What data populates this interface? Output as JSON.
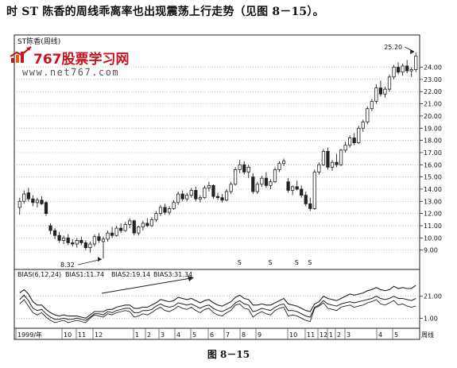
{
  "caption": "时 ST 陈香的周线乖离率也出现震荡上行走势（见图 8－15）。",
  "figure_label": "图 8－15",
  "watermark": {
    "brand": "767股票学习网",
    "url": "www.net767.com"
  },
  "colors": {
    "up": "#ffffff",
    "down": "#222222",
    "line": "#222222",
    "grid": "#888888",
    "watermark": "#c8141e"
  },
  "chart_data": [
    {
      "type": "candlestick",
      "title": "ST陈香(周线)",
      "ylim": [
        8.0,
        25.6
      ],
      "y_ticks": [
        "24.00",
        "23.00",
        "22.00",
        "21.00",
        "20.00",
        "19.00",
        "18.00",
        "17.00",
        "16.00",
        "15.00",
        "14.00",
        "13.00",
        "12.00",
        "11.00",
        "10.00",
        "9.00"
      ],
      "grid": true,
      "annotations": [
        {
          "text": "25.20",
          "value": 25.2
        },
        {
          "text": "8.32",
          "value": 8.32
        }
      ],
      "markers": [
        "S",
        "S",
        "S",
        "S"
      ],
      "candles": [
        {
          "o": 12.5,
          "h": 13.3,
          "l": 11.9,
          "c": 13.0
        },
        {
          "o": 13.0,
          "h": 13.9,
          "l": 12.8,
          "c": 13.6
        },
        {
          "o": 13.7,
          "h": 14.1,
          "l": 13.0,
          "c": 13.2
        },
        {
          "o": 13.2,
          "h": 13.5,
          "l": 12.6,
          "c": 12.9
        },
        {
          "o": 12.9,
          "h": 13.3,
          "l": 12.5,
          "c": 13.1
        },
        {
          "o": 13.1,
          "h": 13.4,
          "l": 12.7,
          "c": 12.8
        },
        {
          "o": 12.9,
          "h": 13.0,
          "l": 11.8,
          "c": 12.0
        },
        {
          "o": 11.0,
          "h": 11.2,
          "l": 10.3,
          "c": 10.6
        },
        {
          "o": 10.6,
          "h": 10.8,
          "l": 9.9,
          "c": 10.2
        },
        {
          "o": 10.2,
          "h": 10.5,
          "l": 9.6,
          "c": 9.8
        },
        {
          "o": 9.8,
          "h": 10.2,
          "l": 9.5,
          "c": 10.0
        },
        {
          "o": 10.0,
          "h": 10.3,
          "l": 9.4,
          "c": 9.6
        },
        {
          "o": 9.6,
          "h": 9.9,
          "l": 9.3,
          "c": 9.5
        },
        {
          "o": 9.5,
          "h": 10.0,
          "l": 9.2,
          "c": 9.8
        },
        {
          "o": 9.8,
          "h": 10.1,
          "l": 9.4,
          "c": 9.6
        },
        {
          "o": 9.6,
          "h": 9.8,
          "l": 9.0,
          "c": 9.2
        },
        {
          "o": 9.2,
          "h": 9.7,
          "l": 8.8,
          "c": 9.5
        },
        {
          "o": 9.5,
          "h": 10.3,
          "l": 9.3,
          "c": 10.1
        },
        {
          "o": 10.1,
          "h": 10.4,
          "l": 9.6,
          "c": 9.8
        },
        {
          "o": 9.7,
          "h": 10.1,
          "l": 8.32,
          "c": 9.9
        },
        {
          "o": 9.9,
          "h": 10.6,
          "l": 9.7,
          "c": 10.4
        },
        {
          "o": 10.4,
          "h": 10.9,
          "l": 10.0,
          "c": 10.2
        },
        {
          "o": 10.2,
          "h": 11.0,
          "l": 10.1,
          "c": 10.8
        },
        {
          "o": 10.8,
          "h": 11.2,
          "l": 10.4,
          "c": 10.6
        },
        {
          "o": 10.6,
          "h": 11.3,
          "l": 10.5,
          "c": 11.1
        },
        {
          "o": 11.1,
          "h": 11.6,
          "l": 10.8,
          "c": 11.4
        },
        {
          "o": 11.4,
          "h": 11.5,
          "l": 10.2,
          "c": 10.4
        },
        {
          "o": 10.4,
          "h": 11.0,
          "l": 10.2,
          "c": 10.9
        },
        {
          "o": 10.9,
          "h": 11.4,
          "l": 10.6,
          "c": 11.2
        },
        {
          "o": 11.2,
          "h": 11.6,
          "l": 10.9,
          "c": 11.0
        },
        {
          "o": 11.0,
          "h": 11.7,
          "l": 10.9,
          "c": 11.5
        },
        {
          "o": 11.5,
          "h": 12.2,
          "l": 11.3,
          "c": 12.0
        },
        {
          "o": 12.0,
          "h": 12.7,
          "l": 11.8,
          "c": 12.5
        },
        {
          "o": 12.5,
          "h": 12.8,
          "l": 11.9,
          "c": 12.1
        },
        {
          "o": 12.1,
          "h": 12.6,
          "l": 11.9,
          "c": 12.4
        },
        {
          "o": 12.4,
          "h": 13.1,
          "l": 12.3,
          "c": 12.9
        },
        {
          "o": 12.9,
          "h": 13.8,
          "l": 12.7,
          "c": 13.6
        },
        {
          "o": 13.6,
          "h": 13.9,
          "l": 13.0,
          "c": 13.2
        },
        {
          "o": 13.2,
          "h": 13.7,
          "l": 13.0,
          "c": 13.5
        },
        {
          "o": 13.5,
          "h": 14.1,
          "l": 13.3,
          "c": 13.9
        },
        {
          "o": 13.9,
          "h": 14.2,
          "l": 13.0,
          "c": 13.2
        },
        {
          "o": 13.2,
          "h": 13.5,
          "l": 12.9,
          "c": 13.3
        },
        {
          "o": 13.3,
          "h": 14.3,
          "l": 13.2,
          "c": 14.1
        },
        {
          "o": 14.1,
          "h": 14.6,
          "l": 13.8,
          "c": 14.3
        },
        {
          "o": 14.3,
          "h": 14.4,
          "l": 13.2,
          "c": 13.4
        },
        {
          "o": 13.4,
          "h": 13.7,
          "l": 13.1,
          "c": 13.3
        },
        {
          "o": 13.3,
          "h": 13.6,
          "l": 12.9,
          "c": 13.1
        },
        {
          "o": 13.1,
          "h": 14.0,
          "l": 13.0,
          "c": 13.8
        },
        {
          "o": 13.8,
          "h": 14.6,
          "l": 13.6,
          "c": 14.4
        },
        {
          "o": 14.4,
          "h": 15.8,
          "l": 14.3,
          "c": 15.6
        },
        {
          "o": 15.6,
          "h": 16.4,
          "l": 15.3,
          "c": 16.0
        },
        {
          "o": 16.0,
          "h": 16.3,
          "l": 15.2,
          "c": 15.4
        },
        {
          "o": 15.4,
          "h": 16.0,
          "l": 14.9,
          "c": 15.8
        },
        {
          "o": 15.0,
          "h": 15.3,
          "l": 13.6,
          "c": 13.8
        },
        {
          "o": 13.8,
          "h": 14.6,
          "l": 13.6,
          "c": 14.4
        },
        {
          "o": 14.4,
          "h": 15.1,
          "l": 14.2,
          "c": 14.9
        },
        {
          "o": 14.9,
          "h": 15.4,
          "l": 14.1,
          "c": 14.3
        },
        {
          "o": 14.3,
          "h": 14.8,
          "l": 14.0,
          "c": 14.6
        },
        {
          "o": 14.6,
          "h": 15.8,
          "l": 14.5,
          "c": 15.6
        },
        {
          "o": 15.6,
          "h": 16.3,
          "l": 15.4,
          "c": 16.1
        },
        {
          "o": 16.1,
          "h": 16.5,
          "l": 15.9,
          "c": 16.3
        },
        {
          "o": 14.6,
          "h": 14.9,
          "l": 13.7,
          "c": 13.9
        },
        {
          "o": 13.9,
          "h": 14.3,
          "l": 13.5,
          "c": 14.2
        },
        {
          "o": 14.2,
          "h": 14.7,
          "l": 13.9,
          "c": 14.0
        },
        {
          "o": 14.0,
          "h": 14.3,
          "l": 13.3,
          "c": 13.5
        },
        {
          "o": 13.5,
          "h": 13.8,
          "l": 12.6,
          "c": 12.8
        },
        {
          "o": 12.8,
          "h": 13.3,
          "l": 12.2,
          "c": 12.4
        },
        {
          "o": 12.4,
          "h": 15.6,
          "l": 12.3,
          "c": 15.4
        },
        {
          "o": 15.4,
          "h": 16.2,
          "l": 15.2,
          "c": 16.0
        },
        {
          "o": 16.0,
          "h": 17.3,
          "l": 15.9,
          "c": 17.1
        },
        {
          "o": 17.1,
          "h": 17.4,
          "l": 15.6,
          "c": 15.8
        },
        {
          "o": 15.8,
          "h": 16.4,
          "l": 15.5,
          "c": 16.2
        },
        {
          "o": 16.2,
          "h": 16.9,
          "l": 15.8,
          "c": 16.0
        },
        {
          "o": 16.0,
          "h": 17.3,
          "l": 15.9,
          "c": 17.2
        },
        {
          "o": 17.2,
          "h": 17.9,
          "l": 17.0,
          "c": 17.6
        },
        {
          "o": 17.6,
          "h": 18.4,
          "l": 17.4,
          "c": 18.2
        },
        {
          "o": 18.2,
          "h": 18.6,
          "l": 17.6,
          "c": 17.8
        },
        {
          "o": 17.8,
          "h": 19.2,
          "l": 17.7,
          "c": 19.0
        },
        {
          "o": 19.0,
          "h": 19.7,
          "l": 18.7,
          "c": 19.5
        },
        {
          "o": 19.5,
          "h": 20.8,
          "l": 19.3,
          "c": 20.6
        },
        {
          "o": 20.6,
          "h": 21.4,
          "l": 20.4,
          "c": 21.2
        },
        {
          "o": 21.2,
          "h": 22.6,
          "l": 21.0,
          "c": 22.3
        },
        {
          "o": 22.3,
          "h": 22.9,
          "l": 21.6,
          "c": 21.8
        },
        {
          "o": 21.8,
          "h": 22.4,
          "l": 21.5,
          "c": 22.2
        },
        {
          "o": 22.2,
          "h": 23.4,
          "l": 22.0,
          "c": 23.2
        },
        {
          "o": 23.2,
          "h": 24.2,
          "l": 23.0,
          "c": 24.0
        },
        {
          "o": 24.0,
          "h": 24.4,
          "l": 23.4,
          "c": 23.6
        },
        {
          "o": 23.6,
          "h": 24.3,
          "l": 23.3,
          "c": 24.1
        },
        {
          "o": 24.1,
          "h": 24.6,
          "l": 23.5,
          "c": 23.7
        },
        {
          "o": 23.7,
          "h": 24.0,
          "l": 23.2,
          "c": 23.8
        },
        {
          "o": 23.8,
          "h": 25.2,
          "l": 23.6,
          "c": 24.9
        }
      ]
    },
    {
      "type": "line",
      "title": "BIAS(6,12,24)",
      "legend": [
        {
          "text": "BIAS1:11.74"
        },
        {
          "text": "BIAS2:19.14"
        },
        {
          "text": "BIAS3:31.34"
        }
      ],
      "ylim": [
        -6,
        36
      ],
      "y_ticks": [
        "21.00",
        "1.00"
      ],
      "series": [
        {
          "name": "BIAS1",
          "values": [
            14,
            18,
            12,
            6,
            4,
            6,
            2,
            -1,
            -3,
            -2,
            -1,
            -3,
            -2,
            -1,
            -2,
            -3,
            1,
            4,
            3,
            2,
            5,
            4,
            6,
            7,
            8,
            7,
            2,
            3,
            5,
            4,
            6,
            9,
            11,
            8,
            7,
            9,
            12,
            10,
            9,
            11,
            8,
            6,
            9,
            10,
            6,
            4,
            3,
            6,
            8,
            13,
            14,
            10,
            9,
            2,
            5,
            7,
            5,
            4,
            8,
            10,
            11,
            3,
            4,
            3,
            1,
            -1,
            -2,
            10,
            12,
            15,
            10,
            9,
            8,
            11,
            12,
            13,
            11,
            12,
            13,
            15,
            16,
            18,
            14,
            13,
            15,
            17,
            13,
            14,
            12,
            11,
            12
          ]
        },
        {
          "name": "BIAS2",
          "values": [
            18,
            22,
            17,
            10,
            8,
            9,
            5,
            2,
            0,
            0,
            1,
            0,
            0,
            1,
            0,
            -1,
            2,
            5,
            5,
            4,
            7,
            6,
            8,
            9,
            10,
            10,
            6,
            6,
            8,
            8,
            9,
            12,
            14,
            12,
            11,
            12,
            15,
            14,
            13,
            14,
            12,
            10,
            12,
            13,
            10,
            8,
            7,
            9,
            11,
            15,
            17,
            14,
            13,
            7,
            8,
            10,
            9,
            8,
            11,
            13,
            14,
            8,
            8,
            7,
            5,
            3,
            2,
            11,
            13,
            17,
            14,
            13,
            12,
            14,
            15,
            16,
            15,
            16,
            17,
            18,
            19,
            21,
            19,
            18,
            19,
            21,
            19,
            19,
            18,
            17,
            19
          ]
        },
        {
          "name": "BIAS3",
          "values": [
            24,
            27,
            23,
            16,
            13,
            13,
            9,
            6,
            4,
            3,
            4,
            3,
            3,
            3,
            2,
            1,
            4,
            7,
            7,
            7,
            9,
            9,
            11,
            12,
            13,
            13,
            10,
            10,
            11,
            11,
            13,
            15,
            18,
            17,
            16,
            17,
            20,
            19,
            18,
            19,
            17,
            15,
            17,
            18,
            15,
            13,
            12,
            14,
            16,
            20,
            22,
            19,
            18,
            13,
            13,
            14,
            13,
            13,
            15,
            17,
            19,
            14,
            13,
            12,
            10,
            8,
            7,
            14,
            16,
            21,
            19,
            18,
            17,
            19,
            21,
            23,
            22,
            23,
            24,
            26,
            27,
            29,
            27,
            26,
            27,
            30,
            28,
            29,
            28,
            28,
            31
          ]
        }
      ],
      "arrow_annotation": true
    }
  ],
  "x_axis": {
    "labels": [
      "1999/年",
      "10",
      "11",
      "12",
      "1",
      "2",
      "3",
      "4",
      "5",
      "6",
      "7",
      "8",
      "9",
      "10",
      "11",
      "12",
      "1",
      "2",
      "3",
      "4",
      "5"
    ],
    "end_label": "周线"
  }
}
